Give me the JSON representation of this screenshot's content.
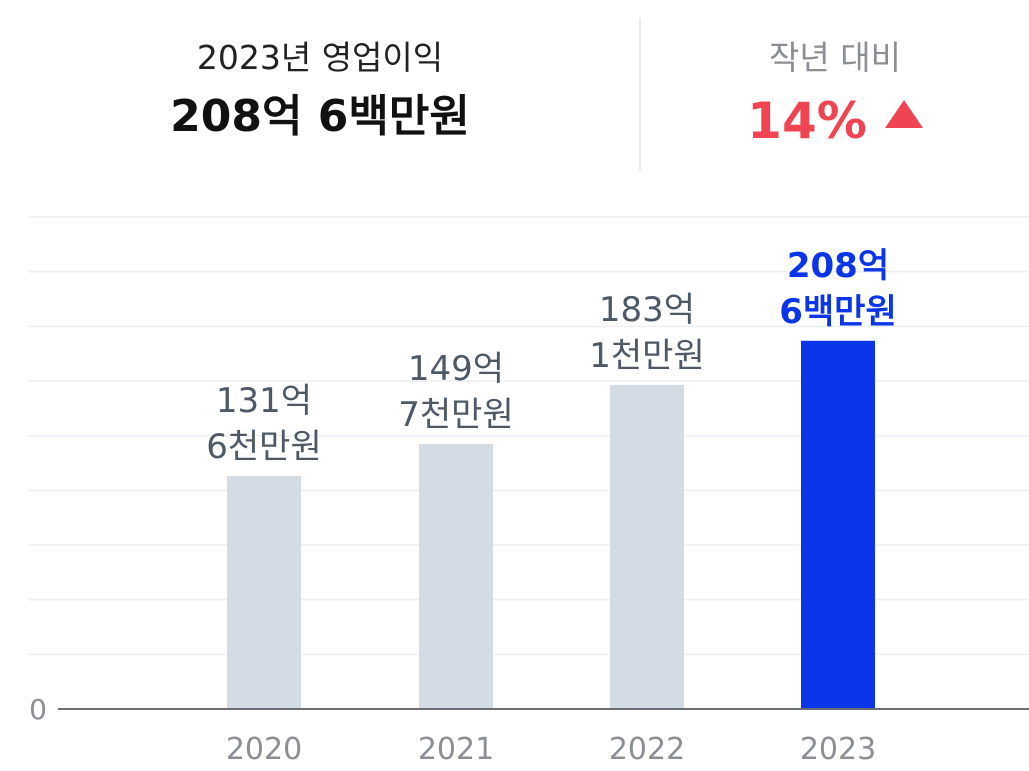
{
  "summary": {
    "title": "2023년 영업이익",
    "value": "208억 6백만원",
    "change_label": "작년 대비",
    "change_value": "14%",
    "change_direction": "up-arrow-icon",
    "change_color": "#f04452"
  },
  "chart_data": {
    "type": "bar",
    "categories": [
      "2020",
      "2021",
      "2022",
      "2023"
    ],
    "values": [
      131.6,
      149.7,
      183.1,
      208.06
    ],
    "value_labels": [
      [
        "131억",
        "6천만원"
      ],
      [
        "149억",
        "7천만원"
      ],
      [
        "183억",
        "1천만원"
      ],
      [
        "208억",
        "6백만원"
      ]
    ],
    "unit": "억원",
    "ylim": [
      0,
      278
    ],
    "y_tick_labels": [
      {
        "value": 0,
        "label": "0"
      }
    ],
    "grid": true,
    "highlight_index": 3,
    "colors": {
      "bar": "#d3dce4",
      "highlight": "#0a35e8",
      "label": "#4e5968",
      "highlight_label": "#0a35e8",
      "axis": "#8b8f94",
      "grid": "#eceef1"
    }
  }
}
